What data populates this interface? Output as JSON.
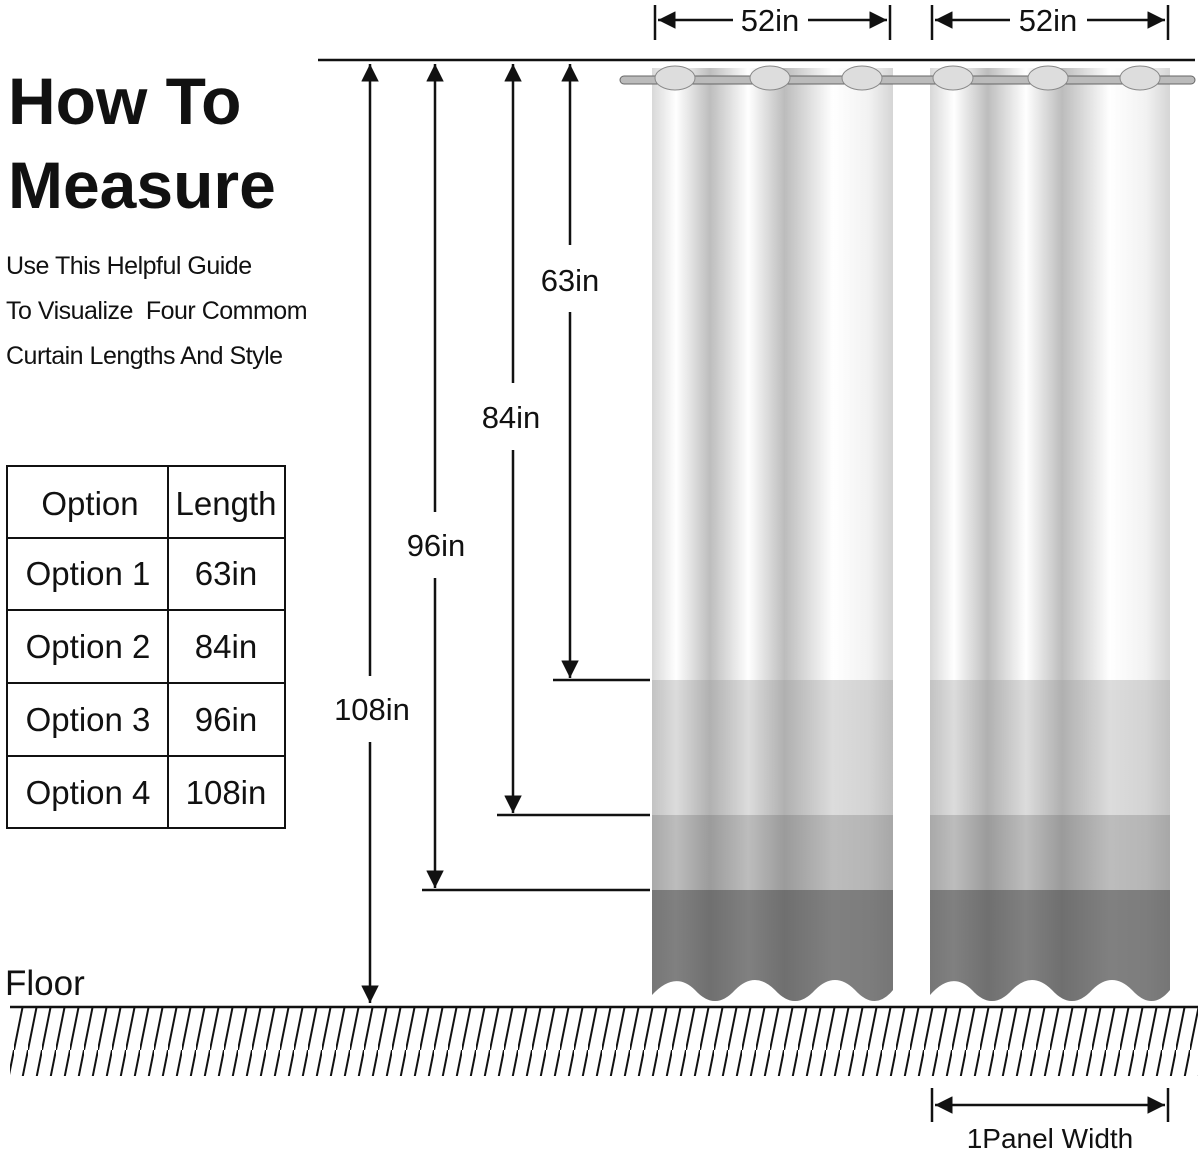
{
  "header": {
    "title_lines": [
      "How To",
      "Measure"
    ],
    "subtitle_lines": [
      "Use This Helpful Guide",
      "To Visualize  Four Commom",
      "Curtain Lengths And Style"
    ]
  },
  "table": {
    "header": [
      "Option",
      "Length"
    ],
    "rows": [
      [
        "Option 1",
        "63in"
      ],
      [
        "Option 2",
        "84in"
      ],
      [
        "Option 3",
        "96in"
      ],
      [
        "Option 4",
        "108in"
      ]
    ]
  },
  "dimensions": {
    "widths": [
      "52in",
      "52in"
    ],
    "lengths": [
      "63in",
      "84in",
      "96in",
      "108in"
    ],
    "floor": "Floor",
    "panel_width": "1Panel Width"
  }
}
